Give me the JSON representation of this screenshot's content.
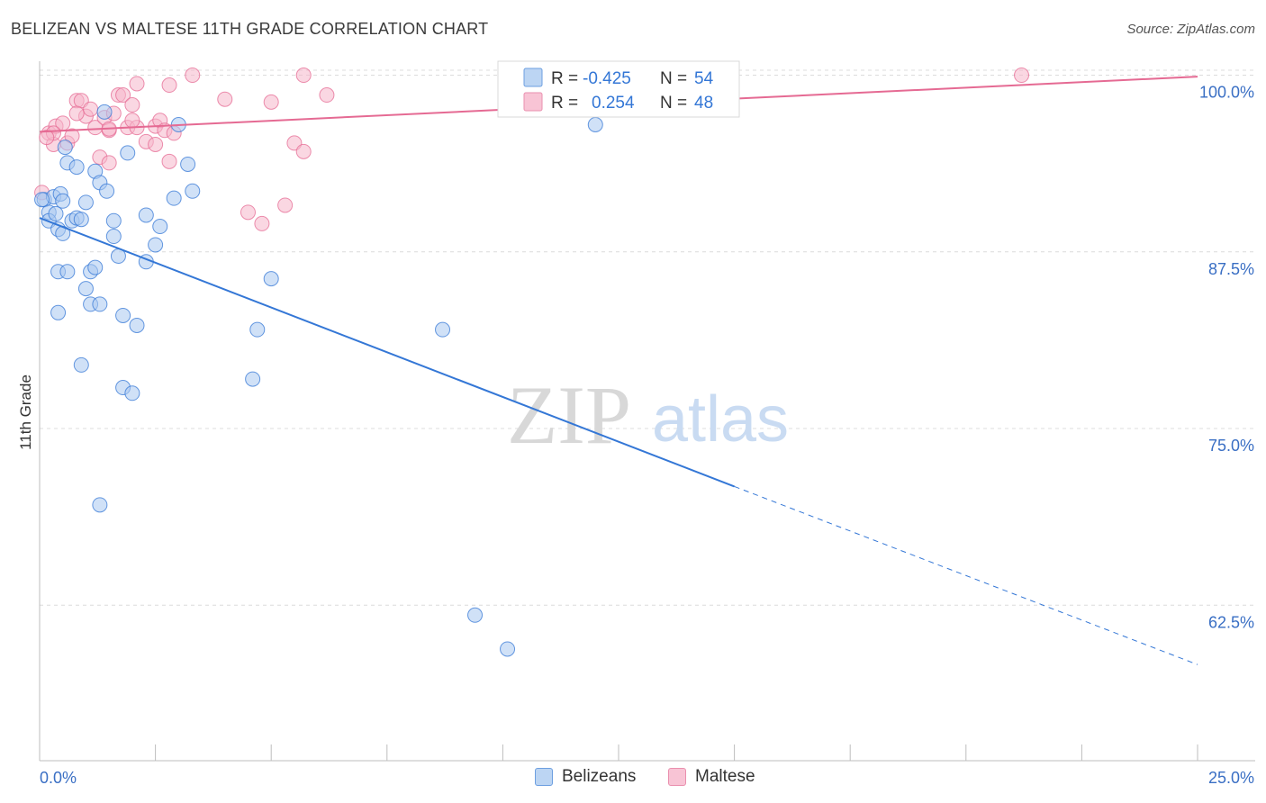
{
  "title": "BELIZEAN VS MALTESE 11TH GRADE CORRELATION CHART",
  "source": "Source: ZipAtlas.com",
  "watermark": {
    "zip": "ZIP",
    "atlas": "atlas"
  },
  "colors": {
    "blue": "#3477d6",
    "blue_fill": "#a9c8f0",
    "pink": "#e56a93",
    "pink_fill": "#f6b6cb",
    "axis_label": "#3a6fc4",
    "grid": "#dcdcdc"
  },
  "legend_stats": [
    {
      "series": "Belizeans",
      "r_label": "R =",
      "r_value": "-0.425",
      "n_label": "N =",
      "n_value": "54"
    },
    {
      "series": "Maltese",
      "r_label": "R =",
      "r_value": "0.254",
      "n_label": "N =",
      "n_value": "48"
    }
  ],
  "legend_bottom": [
    {
      "label": "Belizeans"
    },
    {
      "label": "Maltese"
    }
  ],
  "chart_data": {
    "type": "scatter",
    "title": "BELIZEAN VS MALTESE 11TH GRADE CORRELATION CHART",
    "xlabel": "",
    "ylabel": "11th Grade",
    "xlim": [
      0,
      25
    ],
    "ylim": [
      51.5,
      101.5
    ],
    "x_tick_labels": [
      "0.0%",
      "25.0%"
    ],
    "y_ticks": [
      62.5,
      75.0,
      87.5,
      100.0
    ],
    "y_tick_labels": [
      "62.5%",
      "75.0%",
      "87.5%",
      "100.0%"
    ],
    "grid": true,
    "legend_position": "top-center",
    "series": [
      {
        "name": "Belizeans",
        "color": "#3477d6",
        "trend": {
          "x": [
            0,
            15,
            25
          ],
          "y": [
            89.9,
            70.9,
            58.3
          ],
          "solid_until_x": 15
        },
        "points": [
          [
            0.1,
            91.2
          ],
          [
            0.2,
            90.3
          ],
          [
            0.2,
            89.7
          ],
          [
            0.3,
            91.4
          ],
          [
            0.35,
            90.2
          ],
          [
            0.4,
            89.1
          ],
          [
            0.45,
            91.6
          ],
          [
            0.5,
            88.8
          ],
          [
            0.5,
            91.1
          ],
          [
            0.55,
            94.9
          ],
          [
            0.6,
            93.8
          ],
          [
            0.7,
            89.7
          ],
          [
            0.8,
            89.9
          ],
          [
            0.8,
            93.5
          ],
          [
            0.9,
            89.8
          ],
          [
            1.0,
            91.0
          ],
          [
            1.1,
            86.1
          ],
          [
            1.2,
            86.4
          ],
          [
            1.2,
            93.2
          ],
          [
            1.3,
            92.4
          ],
          [
            1.4,
            97.4
          ],
          [
            1.45,
            91.8
          ],
          [
            1.6,
            89.7
          ],
          [
            1.6,
            88.6
          ],
          [
            1.7,
            87.2
          ],
          [
            1.9,
            94.5
          ],
          [
            2.1,
            82.3
          ],
          [
            2.3,
            86.8
          ],
          [
            2.3,
            90.1
          ],
          [
            2.5,
            88.0
          ],
          [
            2.6,
            89.3
          ],
          [
            2.9,
            91.3
          ],
          [
            3.0,
            96.5
          ],
          [
            3.2,
            93.7
          ],
          [
            3.3,
            91.8
          ],
          [
            0.4,
            86.1
          ],
          [
            0.6,
            86.1
          ],
          [
            0.4,
            83.2
          ],
          [
            1.0,
            84.9
          ],
          [
            1.1,
            83.8
          ],
          [
            1.3,
            83.8
          ],
          [
            1.8,
            83.0
          ],
          [
            0.9,
            79.5
          ],
          [
            1.8,
            77.9
          ],
          [
            2.0,
            77.5
          ],
          [
            4.7,
            82.0
          ],
          [
            4.6,
            78.5
          ],
          [
            5.0,
            85.6
          ],
          [
            8.7,
            82.0
          ],
          [
            12.0,
            96.5
          ],
          [
            1.3,
            69.6
          ],
          [
            9.4,
            61.8
          ],
          [
            10.1,
            59.4
          ],
          [
            0.05,
            91.2
          ]
        ]
      },
      {
        "name": "Maltese",
        "color": "#e56a93",
        "trend": {
          "x": [
            0,
            25
          ],
          "y": [
            96.0,
            99.9
          ],
          "solid_until_x": 25
        },
        "points": [
          [
            0.2,
            95.9
          ],
          [
            0.3,
            95.1
          ],
          [
            0.35,
            96.4
          ],
          [
            0.5,
            96.6
          ],
          [
            0.6,
            95.2
          ],
          [
            0.7,
            95.7
          ],
          [
            0.8,
            98.2
          ],
          [
            0.9,
            98.2
          ],
          [
            1.0,
            97.1
          ],
          [
            1.1,
            97.6
          ],
          [
            1.2,
            96.3
          ],
          [
            1.4,
            97.0
          ],
          [
            1.5,
            96.1
          ],
          [
            1.6,
            97.3
          ],
          [
            1.7,
            98.6
          ],
          [
            1.8,
            98.6
          ],
          [
            1.9,
            96.3
          ],
          [
            2.0,
            97.9
          ],
          [
            2.1,
            96.3
          ],
          [
            2.0,
            96.8
          ],
          [
            2.1,
            99.4
          ],
          [
            2.3,
            95.3
          ],
          [
            2.5,
            95.1
          ],
          [
            2.5,
            96.4
          ],
          [
            2.6,
            96.8
          ],
          [
            2.7,
            96.1
          ],
          [
            2.8,
            93.9
          ],
          [
            2.8,
            99.3
          ],
          [
            2.9,
            95.9
          ],
          [
            3.3,
            100.0
          ],
          [
            1.3,
            94.2
          ],
          [
            1.5,
            93.8
          ],
          [
            4.0,
            98.3
          ],
          [
            4.5,
            90.3
          ],
          [
            4.8,
            89.5
          ],
          [
            5.0,
            98.1
          ],
          [
            5.3,
            90.8
          ],
          [
            5.5,
            95.2
          ],
          [
            5.7,
            94.6
          ],
          [
            5.7,
            100.0
          ],
          [
            6.2,
            98.6
          ],
          [
            11.0,
            98.2
          ],
          [
            21.2,
            100.0
          ],
          [
            0.3,
            95.9
          ],
          [
            0.8,
            97.3
          ],
          [
            1.5,
            96.2
          ],
          [
            0.15,
            95.6
          ],
          [
            0.05,
            91.7
          ]
        ]
      }
    ]
  }
}
